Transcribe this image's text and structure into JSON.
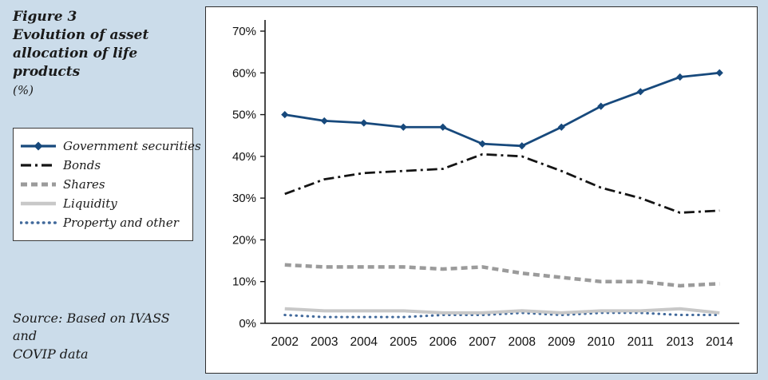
{
  "figure": {
    "label": "Figure 3",
    "title": "Evolution of asset allocation of life products",
    "unit": "(%)"
  },
  "source": {
    "line1": "Source: Based on IVASS and",
    "line2": "COVIP data"
  },
  "colors": {
    "background": "#cbdcea",
    "panel_border": "#2e2e2e",
    "axis": "#1a1a1a",
    "tick_text": "#111111"
  },
  "chart_data": {
    "type": "line",
    "title": "Evolution of asset allocation of life products (%)",
    "xlabel": "",
    "ylabel": "",
    "ylim": [
      0,
      70
    ],
    "ytick_step": 10,
    "ytick_suffix": "%",
    "grid": false,
    "legend_position": "left",
    "categories": [
      "2002",
      "2003",
      "2004",
      "2005",
      "2006",
      "2007",
      "2008",
      "2009",
      "2010",
      "2011",
      "2013",
      "2014"
    ],
    "series": [
      {
        "name": "Government securities",
        "values": [
          50,
          48.5,
          48,
          47,
          47,
          43,
          42.5,
          47,
          52,
          55.5,
          59,
          60
        ],
        "color": "#17497c",
        "dash": null,
        "linecap": null,
        "width": 2.8,
        "marker": "diamond"
      },
      {
        "name": "Bonds",
        "values": [
          31,
          34.5,
          36,
          36.5,
          37,
          40.5,
          40,
          36.5,
          32.5,
          30,
          26.5,
          27
        ],
        "color": "#141414",
        "dash": "13 5 3 5",
        "linecap": null,
        "width": 2.8,
        "marker": null
      },
      {
        "name": "Shares",
        "values": [
          14,
          13.5,
          13.5,
          13.5,
          13,
          13.5,
          12,
          11,
          10,
          10,
          9,
          9.5
        ],
        "color": "#9b9b9b",
        "dash": "8 5",
        "linecap": null,
        "width": 4.5,
        "marker": null
      },
      {
        "name": "Liquidity",
        "values": [
          3.5,
          3,
          3,
          3,
          2.5,
          2.5,
          3,
          2.5,
          3,
          3,
          3.5,
          2.5
        ],
        "color": "#c8c8c8",
        "dash": null,
        "linecap": null,
        "width": 4,
        "marker": null
      },
      {
        "name": "Property and other",
        "values": [
          2,
          1.5,
          1.5,
          1.5,
          2,
          2,
          2.5,
          2,
          2.5,
          2.5,
          2,
          2
        ],
        "color": "#41699b",
        "dash": "0.6 6.5",
        "linecap": "round",
        "width": 3,
        "marker": null
      }
    ]
  }
}
